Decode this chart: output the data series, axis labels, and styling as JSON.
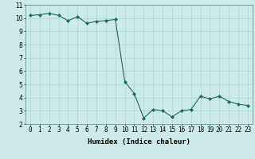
{
  "x": [
    0,
    1,
    2,
    3,
    4,
    5,
    6,
    7,
    8,
    9,
    10,
    11,
    12,
    13,
    14,
    15,
    16,
    17,
    18,
    19,
    20,
    21,
    22,
    23
  ],
  "y": [
    10.2,
    10.25,
    10.35,
    10.2,
    9.8,
    10.1,
    9.6,
    9.75,
    9.8,
    9.9,
    5.2,
    4.3,
    2.45,
    3.1,
    3.0,
    2.55,
    3.0,
    3.1,
    4.1,
    3.9,
    4.1,
    3.7,
    3.5,
    3.4
  ],
  "line_color": "#1a6b5e",
  "marker": "D",
  "marker_size": 2,
  "bg_color": "#cceaea",
  "grid_color": "#aad4d4",
  "xlabel": "Humidex (Indice chaleur)",
  "xlim": [
    -0.5,
    23.5
  ],
  "ylim": [
    2,
    11
  ],
  "yticks": [
    2,
    3,
    4,
    5,
    6,
    7,
    8,
    9,
    10,
    11
  ],
  "xticks": [
    0,
    1,
    2,
    3,
    4,
    5,
    6,
    7,
    8,
    9,
    10,
    11,
    12,
    13,
    14,
    15,
    16,
    17,
    18,
    19,
    20,
    21,
    22,
    23
  ],
  "xlabel_fontsize": 6.5,
  "tick_fontsize": 5.5
}
